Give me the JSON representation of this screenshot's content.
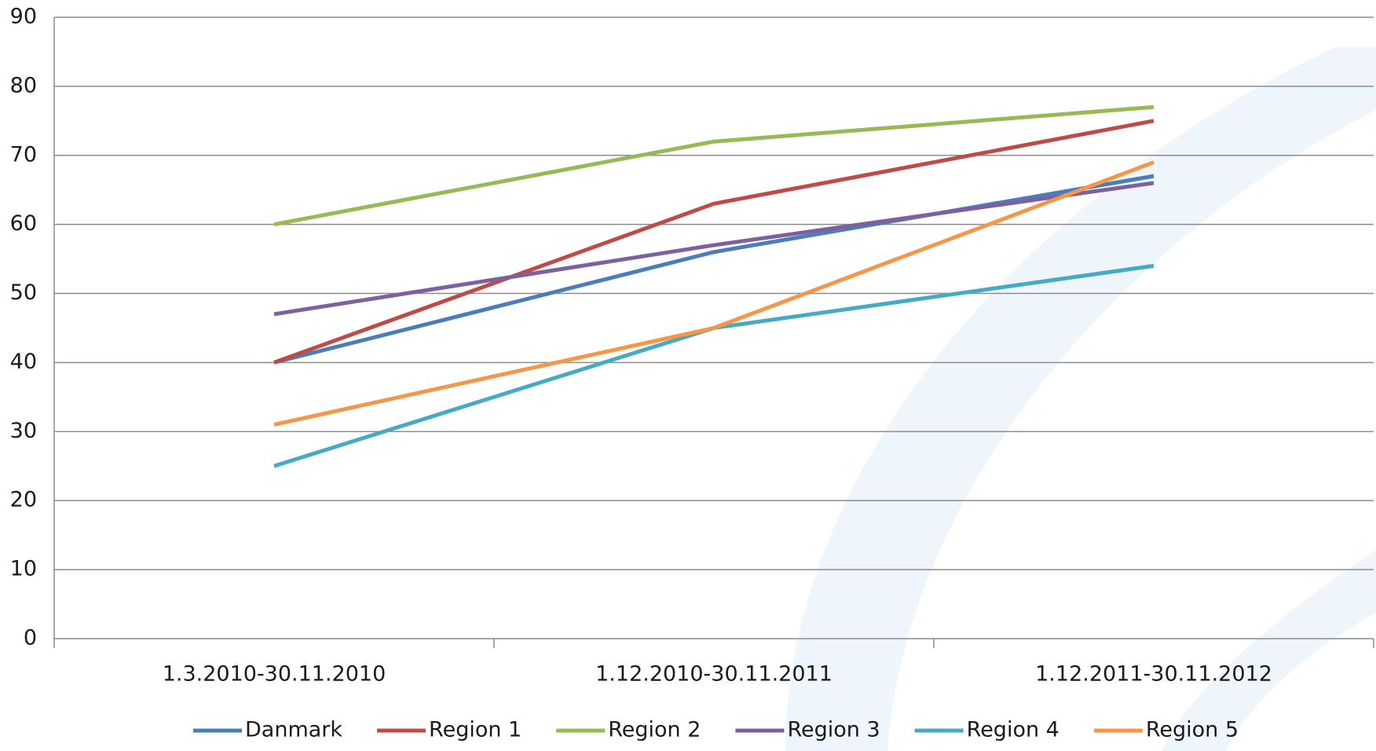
{
  "chart_data": {
    "type": "line",
    "categories": [
      "1.3.2010-30.11.2010",
      "1.12.2010-30.11.2011",
      "1.12.2011-30.11.2012"
    ],
    "series": [
      {
        "name": "Danmark",
        "color": "#4a7ebb",
        "values": [
          40,
          56,
          67
        ]
      },
      {
        "name": "Region 1",
        "color": "#be4b48",
        "values": [
          40,
          63,
          75
        ]
      },
      {
        "name": "Region 2",
        "color": "#98b954",
        "values": [
          60,
          72,
          77
        ]
      },
      {
        "name": "Region 3",
        "color": "#7d60a0",
        "values": [
          47,
          57,
          66
        ]
      },
      {
        "name": "Region 4",
        "color": "#46aac5",
        "values": [
          25,
          45,
          54
        ]
      },
      {
        "name": "Region 5",
        "color": "#f79646",
        "values": [
          31,
          45,
          69
        ]
      }
    ],
    "ylim": [
      0,
      90
    ],
    "yticks": [
      0,
      10,
      20,
      30,
      40,
      50,
      60,
      70,
      80,
      90
    ],
    "grid": true,
    "legend": "bottom"
  }
}
